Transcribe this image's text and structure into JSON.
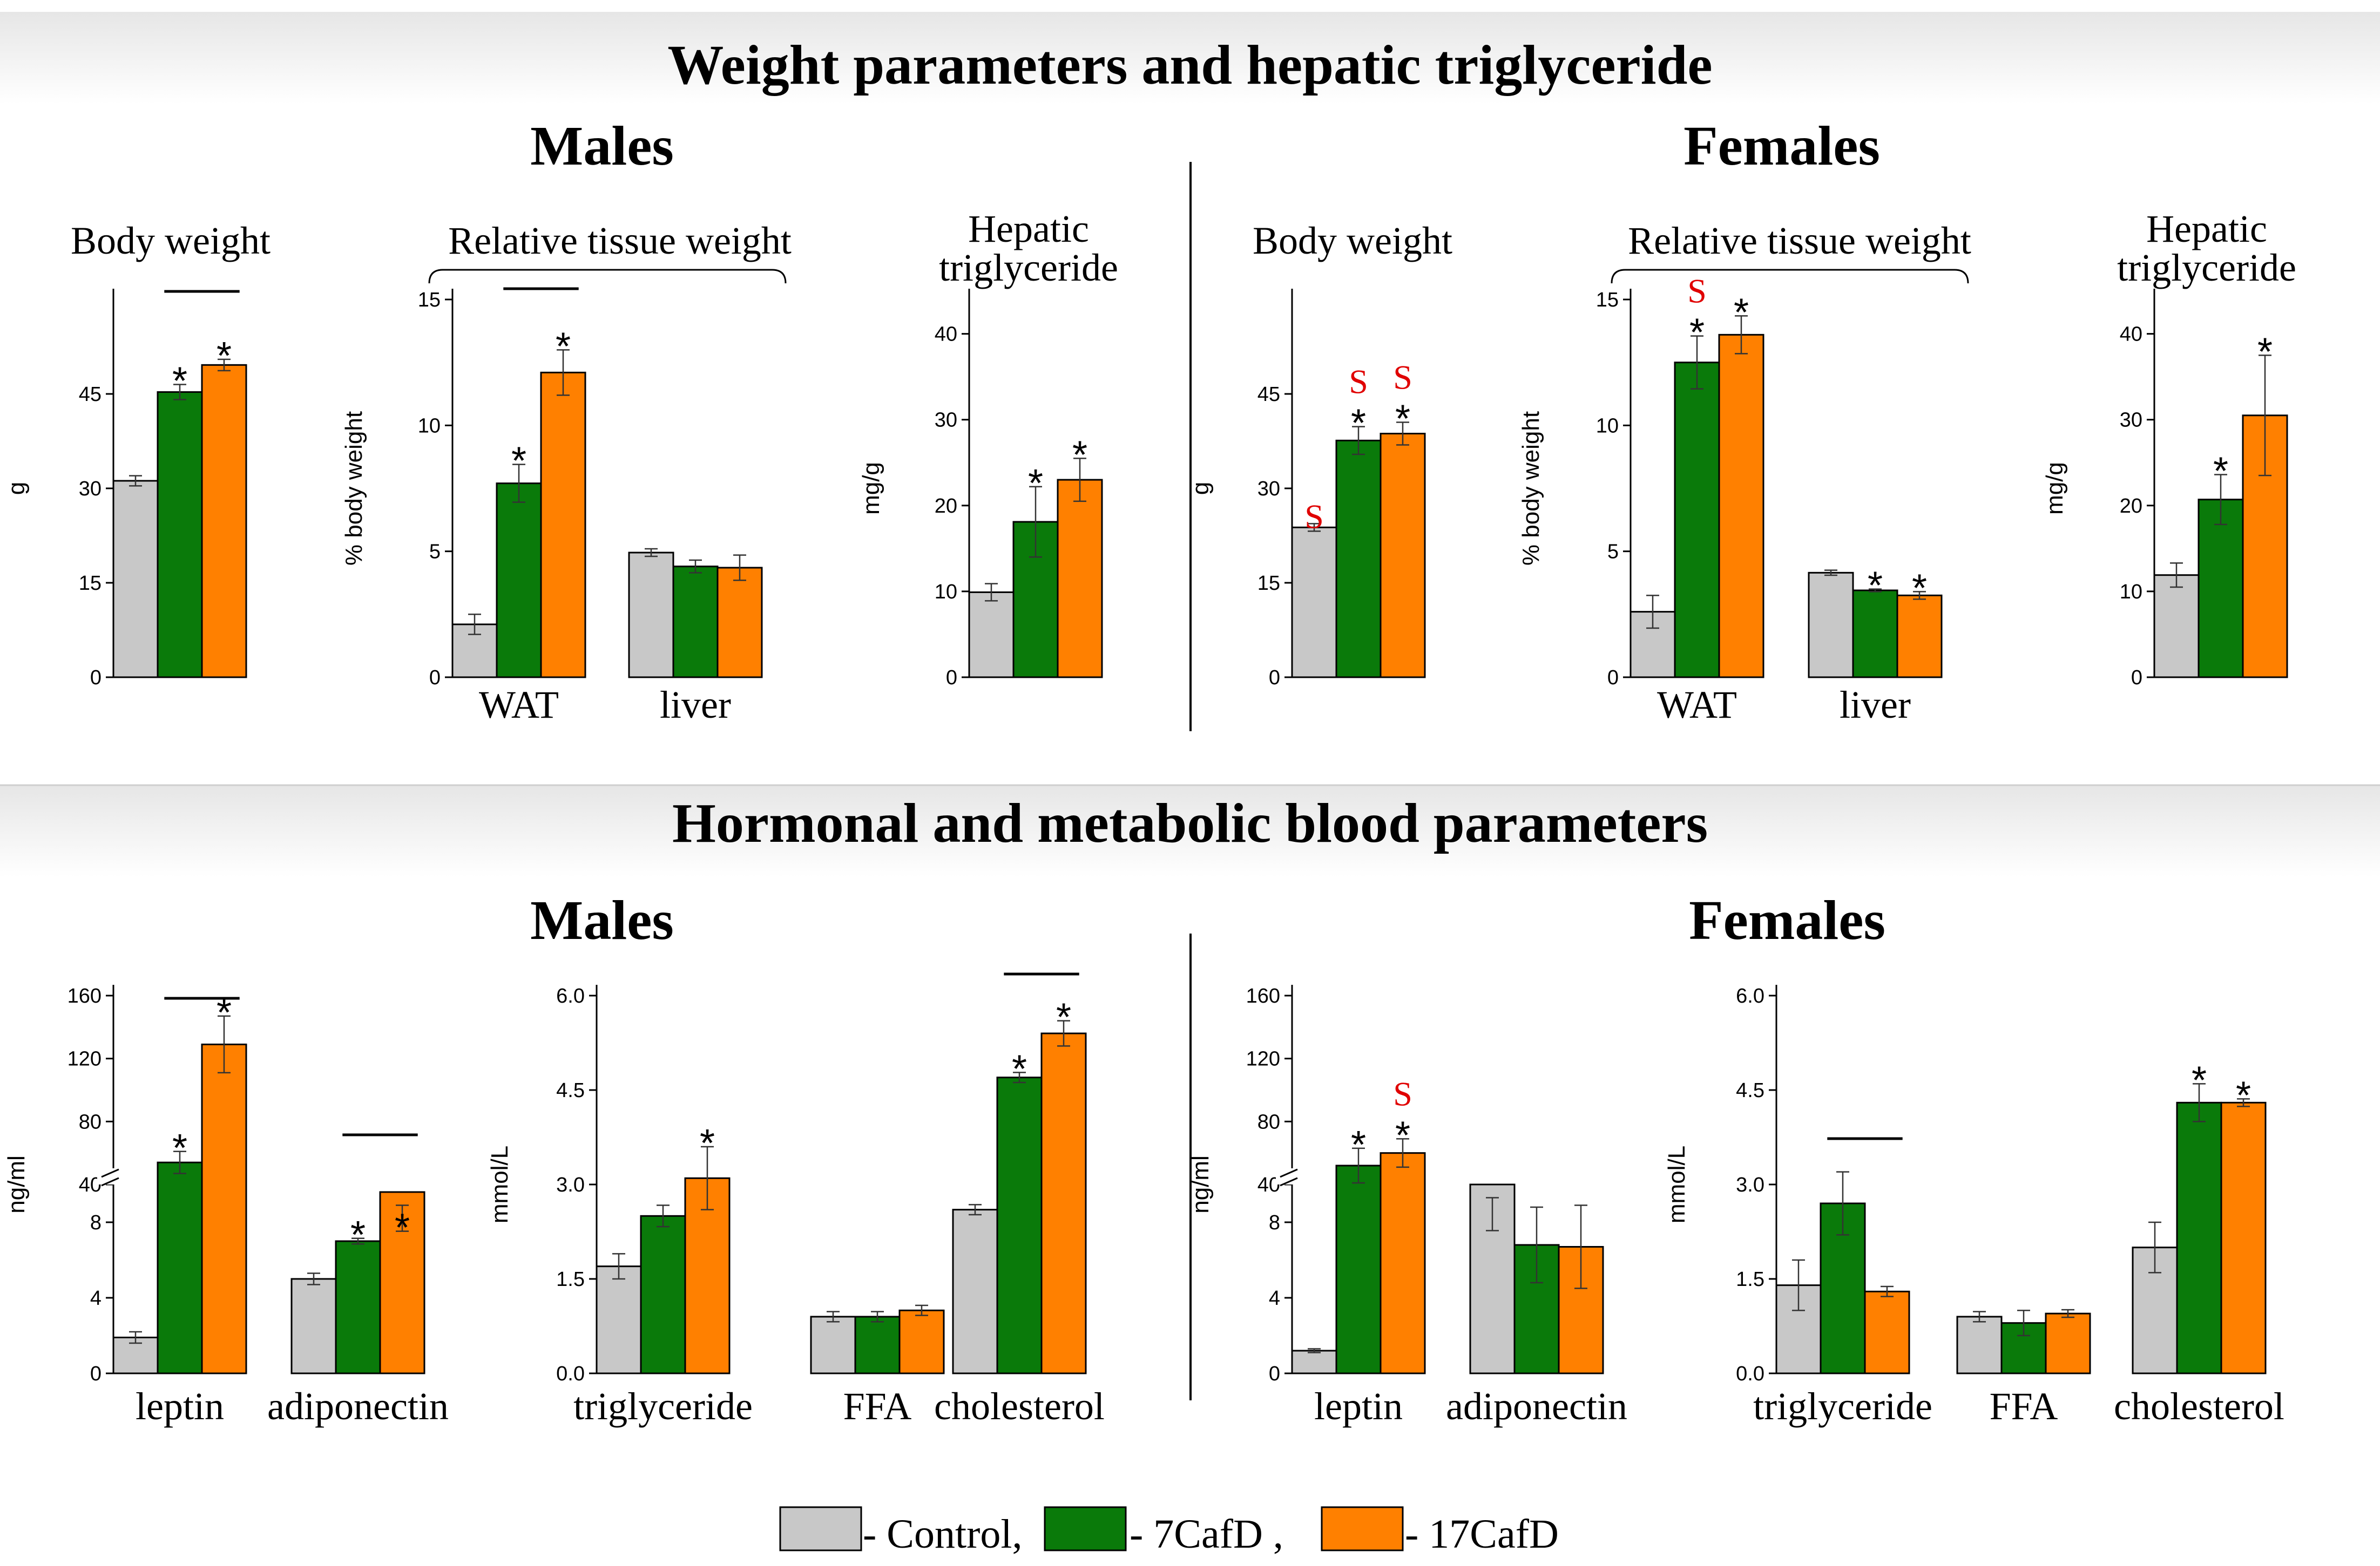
{
  "sections": [
    {
      "title": "Weight parameters and hepatic triglyceride"
    },
    {
      "title": "Hormonal and metabolic blood parameters"
    }
  ],
  "sex_labels": {
    "males": "Males",
    "females": "Females"
  },
  "legend": {
    "items": [
      {
        "label": "- Control,",
        "color": "#c8c8c8"
      },
      {
        "label": "- 7CafD ,",
        "color": "#0a7a0a"
      },
      {
        "label": "- 17CafD",
        "color": "#ff8000"
      }
    ]
  },
  "colors": {
    "control": "#c8c8c8",
    "cafd7": "#0a7a0a",
    "cafd17": "#ff8000",
    "significance_s": "#e00000"
  },
  "chart_data": [
    {
      "type": "bar",
      "sex": "Males",
      "title": "Body weight",
      "ylabel": "g",
      "yticks": [
        0,
        15,
        30,
        45
      ],
      "ylim": [
        0,
        60
      ],
      "categories": [
        ""
      ],
      "values": [
        [
          31.2,
          45.3,
          49.6
        ]
      ],
      "errors": [
        [
          0.8,
          1.2,
          0.9
        ]
      ],
      "stars": [
        [
          "",
          "*",
          "*"
        ]
      ],
      "s_marks": [
        [
          "",
          "",
          ""
        ]
      ],
      "brace": ""
    },
    {
      "type": "bar",
      "sex": "Males",
      "title": "Relative tissue weight",
      "ylabel": "% body weight",
      "yticks": [
        0,
        5,
        10,
        15
      ],
      "ylim": [
        0,
        15
      ],
      "categories": [
        "WAT",
        "liver"
      ],
      "values": [
        [
          2.1,
          7.7,
          12.1
        ],
        [
          4.95,
          4.4,
          4.35
        ]
      ],
      "errors": [
        [
          0.4,
          0.75,
          0.9
        ],
        [
          0.15,
          0.25,
          0.5
        ]
      ],
      "stars": [
        [
          "",
          "*",
          "*"
        ],
        [
          "",
          "",
          ""
        ]
      ],
      "s_marks": [
        [
          "",
          "",
          ""
        ],
        [
          "",
          "",
          ""
        ]
      ],
      "brace": "Relative tissue weight"
    },
    {
      "type": "bar",
      "sex": "Males",
      "title": "Hepatic triglyceride",
      "ylabel": "mg/g",
      "yticks": [
        0,
        10,
        20,
        30,
        40
      ],
      "ylim": [
        0,
        44
      ],
      "categories": [
        ""
      ],
      "values": [
        [
          9.9,
          18.1,
          23.0
        ]
      ],
      "errors": [
        [
          1.0,
          4.1,
          2.5
        ]
      ],
      "stars": [
        [
          "",
          "*",
          "*"
        ]
      ],
      "s_marks": [
        [
          "",
          "",
          ""
        ]
      ],
      "brace": ""
    },
    {
      "type": "bar",
      "sex": "Females",
      "title": "Body weight",
      "ylabel": "g",
      "yticks": [
        0,
        15,
        30,
        45
      ],
      "ylim": [
        0,
        60
      ],
      "categories": [
        ""
      ],
      "values": [
        [
          23.8,
          37.6,
          38.7
        ]
      ],
      "errors": [
        [
          0.6,
          2.2,
          1.8
        ]
      ],
      "stars": [
        [
          "",
          "*",
          "*"
        ]
      ],
      "s_marks": [
        [
          "S",
          "S",
          "S"
        ]
      ],
      "brace": ""
    },
    {
      "type": "bar",
      "sex": "Females",
      "title": "Relative tissue weight",
      "ylabel": "% body weight",
      "yticks": [
        0,
        5,
        10,
        15
      ],
      "ylim": [
        0,
        15
      ],
      "categories": [
        "WAT",
        "liver"
      ],
      "values": [
        [
          2.6,
          12.5,
          13.6
        ],
        [
          4.15,
          3.45,
          3.25
        ]
      ],
      "errors": [
        [
          0.65,
          1.05,
          0.75
        ],
        [
          0.1,
          0.05,
          0.15
        ]
      ],
      "stars": [
        [
          "",
          "*",
          "*"
        ],
        [
          "",
          "*",
          "*"
        ]
      ],
      "s_marks": [
        [
          "",
          "S",
          ""
        ],
        [
          "",
          "",
          ""
        ]
      ],
      "brace": "Relative tissue weight"
    },
    {
      "type": "bar",
      "sex": "Females",
      "title": "Hepatic triglyceride",
      "ylabel": "mg/g",
      "yticks": [
        0,
        10,
        20,
        30,
        40
      ],
      "ylim": [
        0,
        44
      ],
      "categories": [
        ""
      ],
      "values": [
        [
          11.9,
          20.7,
          30.5
        ]
      ],
      "errors": [
        [
          1.4,
          2.9,
          7.0
        ]
      ],
      "stars": [
        [
          "",
          "*",
          "*"
        ]
      ],
      "s_marks": [
        [
          "",
          "",
          ""
        ]
      ],
      "brace": ""
    },
    {
      "type": "bar",
      "sex": "Males",
      "title": "",
      "ylabel": "ng/ml",
      "yticks": [
        0,
        4,
        8,
        40,
        80,
        120,
        160
      ],
      "axis_break": true,
      "categories": [
        "leptin",
        "adiponectin"
      ],
      "values": [
        [
          1.9,
          54,
          129
        ],
        [
          5.0,
          7.0,
          9.6
        ]
      ],
      "errors": [
        [
          0.3,
          7,
          18
        ],
        [
          0.3,
          0.15,
          0.7
        ]
      ],
      "stars": [
        [
          "",
          "*",
          "*"
        ],
        [
          "",
          "*",
          "*"
        ]
      ],
      "s_marks": [
        [
          "",
          "",
          ""
        ],
        [
          "",
          "",
          ""
        ]
      ],
      "brace": ""
    },
    {
      "type": "bar",
      "sex": "Males",
      "title": "",
      "ylabel": "mmol/L",
      "yticks": [
        0.0,
        1.5,
        3.0,
        4.5,
        6.0
      ],
      "ylim": [
        0,
        6
      ],
      "categories": [
        "triglyceride",
        "FFA",
        "cholesterol"
      ],
      "values": [
        [
          1.7,
          2.5,
          3.1
        ],
        [
          0.9,
          0.9,
          1.0
        ],
        [
          2.6,
          4.7,
          5.4
        ]
      ],
      "errors": [
        [
          0.2,
          0.17,
          0.5
        ],
        [
          0.08,
          0.08,
          0.08
        ],
        [
          0.08,
          0.08,
          0.2
        ]
      ],
      "stars": [
        [
          "",
          "",
          "*"
        ],
        [
          "",
          "",
          ""
        ],
        [
          "",
          "*",
          "*"
        ]
      ],
      "s_marks": [
        [
          "",
          "",
          ""
        ],
        [
          "",
          "",
          ""
        ],
        [
          "",
          "",
          ""
        ]
      ],
      "brace": ""
    },
    {
      "type": "bar",
      "sex": "Females",
      "title": "",
      "ylabel": "ng/ml",
      "yticks": [
        0,
        4,
        8,
        40,
        80,
        120,
        160
      ],
      "axis_break": true,
      "categories": [
        "leptin",
        "adiponectin"
      ],
      "values": [
        [
          1.2,
          52,
          60
        ],
        [
          10.0,
          6.8,
          6.7
        ]
      ],
      "errors": [
        [
          0.1,
          11,
          9
        ],
        [
          0.7,
          2.0,
          2.2
        ]
      ],
      "stars": [
        [
          "",
          "*",
          "*"
        ],
        [
          "",
          "",
          ""
        ]
      ],
      "s_marks": [
        [
          "",
          "",
          "S"
        ],
        [
          "",
          "",
          ""
        ]
      ],
      "brace": ""
    },
    {
      "type": "bar",
      "sex": "Females",
      "title": "",
      "ylabel": "mmol/L",
      "yticks": [
        0.0,
        1.5,
        3.0,
        4.5,
        6.0
      ],
      "ylim": [
        0,
        6
      ],
      "categories": [
        "triglyceride",
        "FFA",
        "cholesterol"
      ],
      "values": [
        [
          1.4,
          2.7,
          1.3
        ],
        [
          0.9,
          0.8,
          0.95
        ],
        [
          2.0,
          4.3,
          4.3
        ]
      ],
      "errors": [
        [
          0.4,
          0.5,
          0.08
        ],
        [
          0.08,
          0.2,
          0.06
        ],
        [
          0.4,
          0.3,
          0.06
        ]
      ],
      "stars": [
        [
          "",
          "",
          ""
        ],
        [
          "",
          "",
          ""
        ],
        [
          "",
          "*",
          "*"
        ]
      ],
      "s_marks": [
        [
          "",
          "",
          ""
        ],
        [
          "",
          "",
          ""
        ],
        [
          "",
          "",
          ""
        ]
      ],
      "brace": ""
    }
  ]
}
